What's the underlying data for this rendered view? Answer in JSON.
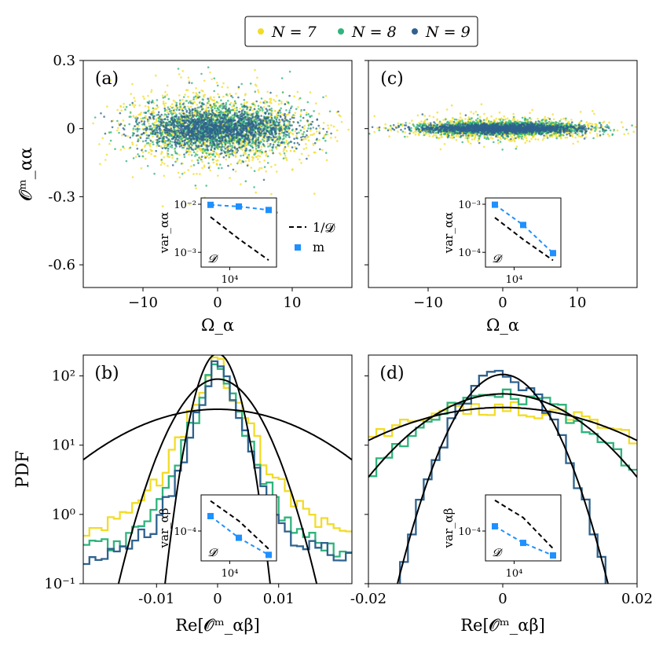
{
  "colors": {
    "N7": "#f2dc28",
    "N8": "#2fb47c",
    "N9": "#2f628e",
    "accent_m": "#1e90ff",
    "fit": "#000000"
  },
  "legend": {
    "entries": [
      {
        "label": "N = 7",
        "color_key": "N7"
      },
      {
        "label": "N = 8",
        "color_key": "N8"
      },
      {
        "label": "N = 9",
        "color_key": "N9"
      }
    ]
  },
  "chart_data": [
    {
      "panel": "(a)",
      "type": "scatter",
      "ylabel": "𝓞ᵐ_αα",
      "xlabel": "Ω_α",
      "xlim": [
        -18,
        18
      ],
      "ylim": [
        -0.7,
        0.3
      ],
      "xticks": [
        {
          "v": -10,
          "label": "−10"
        },
        {
          "v": 0,
          "label": "0"
        },
        {
          "v": 10,
          "label": "10"
        }
      ],
      "yticks": [
        {
          "v": 0.3,
          "label": "0.3"
        },
        {
          "v": 0,
          "label": "0"
        },
        {
          "v": -0.3,
          "label": "-0.3"
        },
        {
          "v": -0.6,
          "label": "-0.6"
        }
      ],
      "series": [
        {
          "name": "N = 7",
          "color_key": "N7",
          "spread_x": 6.0,
          "spread_y": 0.075
        },
        {
          "name": "N = 8",
          "color_key": "N8",
          "spread_x": 5.5,
          "spread_y": 0.055
        },
        {
          "name": "N = 9",
          "color_key": "N9",
          "spread_x": 5.2,
          "spread_y": 0.04
        }
      ],
      "inset": {
        "ylabel": "var_αα",
        "xlabel": "𝓓",
        "xtick_label": "10⁴",
        "yticks": [
          {
            "label": "10⁻²"
          },
          {
            "label": "10⁻³"
          }
        ],
        "m_values": [
          0.0088,
          0.0081,
          0.0068
        ],
        "inverse_D_values": [
          0.0048,
          0.0016,
          0.00055
        ],
        "legend": {
          "dashed": "1/𝓓",
          "marker": "m"
        }
      }
    },
    {
      "panel": "(c)",
      "type": "scatter",
      "xlabel": "Ω_α",
      "xlim": [
        -18,
        18
      ],
      "ylim": [
        -0.7,
        0.3
      ],
      "xticks": [
        {
          "v": -10,
          "label": "−10"
        },
        {
          "v": 0,
          "label": "0"
        },
        {
          "v": 10,
          "label": "10"
        }
      ],
      "series": [
        {
          "name": "N = 7",
          "color_key": "N7",
          "spread_x": 6.0,
          "spread_y": 0.02
        },
        {
          "name": "N = 8",
          "color_key": "N8",
          "spread_x": 5.5,
          "spread_y": 0.014
        },
        {
          "name": "N = 9",
          "color_key": "N9",
          "spread_x": 5.2,
          "spread_y": 0.01
        }
      ],
      "inset": {
        "ylabel": "var_αα",
        "xlabel": "𝓓",
        "xtick_label": "10⁴",
        "yticks": [
          {
            "label": "10⁻³"
          },
          {
            "label": "10⁻⁴"
          }
        ],
        "m_values": [
          0.00062,
          0.00022,
          5.2e-05
        ],
        "inverse_D_values": [
          0.00032,
          0.000105,
          3.6e-05
        ]
      }
    },
    {
      "panel": "(b)",
      "type": "histogram",
      "ylabel": "PDF",
      "xlabel": "Re[𝓞ᵐ_αβ]",
      "yscale": "log",
      "xlim": [
        -0.022,
        0.022
      ],
      "ylim": [
        0.1,
        200
      ],
      "xticks": [
        {
          "v": -0.01,
          "label": "-0.01"
        },
        {
          "v": 0,
          "label": "0"
        },
        {
          "v": 0.01,
          "label": "0.01"
        }
      ],
      "yticks": [
        {
          "v": 100,
          "label": "10²"
        },
        {
          "v": 10,
          "label": "10¹"
        },
        {
          "v": 1,
          "label": "10⁰"
        },
        {
          "v": 0.1,
          "label": "10⁻¹"
        }
      ],
      "series": [
        {
          "name": "N = 7",
          "color_key": "N7",
          "peak": 180,
          "width": 0.0022,
          "floor": 0.55
        },
        {
          "name": "N = 8",
          "color_key": "N8",
          "peak": 200,
          "width": 0.0018,
          "floor": 0.3
        },
        {
          "name": "N = 9",
          "color_key": "N9",
          "peak": 200,
          "width": 0.0016,
          "floor": 0.25
        }
      ],
      "fits": [
        {
          "peak": 33,
          "sigma": 0.012
        },
        {
          "peak": 90,
          "sigma": 0.0044
        },
        {
          "peak": 210,
          "sigma": 0.0022
        }
      ],
      "inset": {
        "ylabel": "var_αβ",
        "xlabel": "𝓓",
        "xtick_label": "10⁴",
        "yticks": [
          {
            "label": "10⁻⁴"
          }
        ],
        "m_values": [
          0.00025,
          7.2e-05,
          2.7e-05
        ],
        "inverse_D_values": [
          0.0006,
          0.00019,
          3.8e-05
        ]
      }
    },
    {
      "panel": "(d)",
      "type": "histogram",
      "xlabel": "Re[𝓞ᵐ_αβ]",
      "yscale": "log",
      "xlim": [
        -0.02,
        0.02
      ],
      "ylim": [
        0.1,
        200
      ],
      "xticks": [
        {
          "v": -0.02,
          "label": "-0.02"
        },
        {
          "v": 0,
          "label": "0"
        },
        {
          "v": 0.02,
          "label": "0.02"
        }
      ],
      "series": [
        {
          "name": "N = 7",
          "color_key": "N7",
          "peak": 35,
          "sigma": 0.0135
        },
        {
          "name": "N = 8",
          "color_key": "N8",
          "peak": 55,
          "sigma": 0.0085
        },
        {
          "name": "N = 9",
          "color_key": "N9",
          "peak": 105,
          "sigma": 0.0042
        }
      ],
      "fits": [
        {
          "peak": 35,
          "sigma": 0.0135
        },
        {
          "peak": 55,
          "sigma": 0.0085
        },
        {
          "peak": 105,
          "sigma": 0.0042
        }
      ],
      "inset": {
        "ylabel": "var_αβ",
        "xlabel": "𝓓",
        "xtick_label": "10⁴",
        "yticks": [
          {
            "label": "10⁻⁴"
          }
        ],
        "m_values": [
          0.000115,
          4e-05,
          1.8e-05
        ],
        "inverse_D_values": [
          0.0006,
          0.0002,
          2.8e-05
        ]
      }
    }
  ]
}
